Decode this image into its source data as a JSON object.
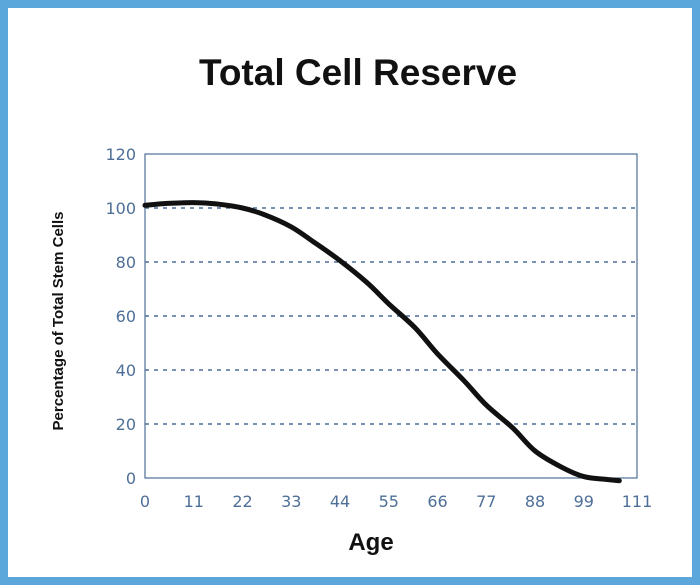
{
  "chart_data": {
    "type": "line",
    "title": "Total Cell Reserve",
    "xlabel": "Age",
    "ylabel": "Percentage of Total Stem Cells",
    "xlim": [
      0,
      111
    ],
    "ylim": [
      0,
      120
    ],
    "x_ticks": [
      0,
      11,
      22,
      33,
      44,
      55,
      66,
      77,
      88,
      99,
      111
    ],
    "y_ticks": [
      0,
      20,
      40,
      60,
      80,
      100,
      120
    ],
    "grid": "horizontal dashed",
    "series": [
      {
        "x": [
          0,
          5,
          11,
          16,
          22,
          27,
          33,
          38,
          44,
          50,
          55,
          61,
          66,
          72,
          77,
          83,
          88,
          94,
          99,
          104,
          107
        ],
        "values": [
          101,
          101.7,
          102,
          101.5,
          100,
          97.5,
          93,
          87.5,
          80.5,
          72.5,
          64.5,
          55.5,
          46,
          36,
          27,
          18.5,
          10,
          4,
          0.5,
          -0.5,
          -1
        ]
      }
    ]
  },
  "colors": {
    "frame": "#5ba7dc",
    "axis": "#4e6f97",
    "grid": "#4e6f97",
    "line": "#111111",
    "tick_text": "#4e6f97"
  }
}
